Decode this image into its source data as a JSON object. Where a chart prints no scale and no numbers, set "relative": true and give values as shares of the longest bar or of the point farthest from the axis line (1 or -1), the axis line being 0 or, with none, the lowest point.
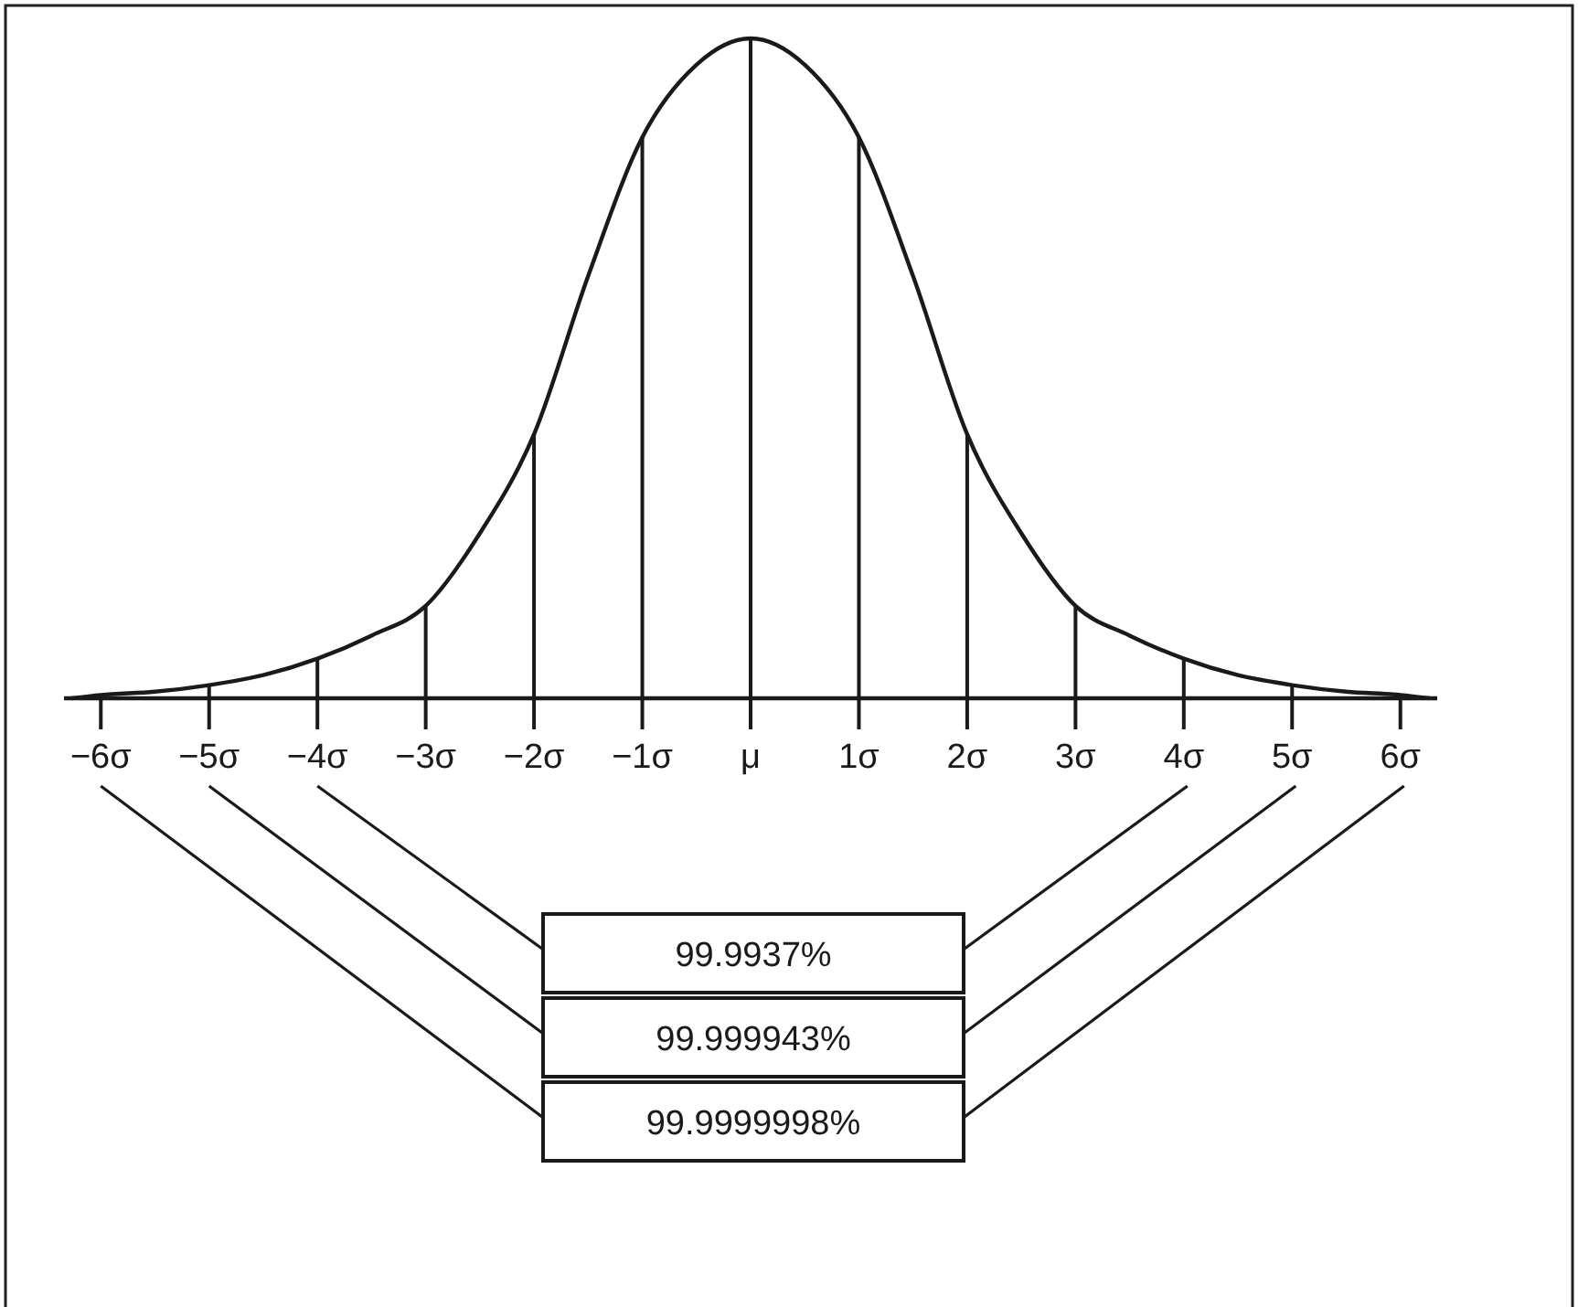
{
  "chart_data": {
    "type": "line",
    "relative": true,
    "xlim": [
      -6.34,
      6.34
    ],
    "xticks": [
      {
        "value": -6,
        "label": "−6σ"
      },
      {
        "value": -5,
        "label": "−5σ"
      },
      {
        "value": -4,
        "label": "−4σ"
      },
      {
        "value": -3,
        "label": "−3σ"
      },
      {
        "value": -2,
        "label": "−2σ"
      },
      {
        "value": -1,
        "label": "−1σ"
      },
      {
        "value": 0,
        "label": "μ"
      },
      {
        "value": 1,
        "label": "1σ"
      },
      {
        "value": 2,
        "label": "2σ"
      },
      {
        "value": 3,
        "label": "3σ"
      },
      {
        "value": 4,
        "label": "4σ"
      },
      {
        "value": 5,
        "label": "5σ"
      },
      {
        "value": 6,
        "label": "6σ"
      }
    ],
    "series": [
      {
        "color": "#1a1a1a",
        "x": [
          -6.27,
          -6,
          -5.5,
          -5,
          -4.5,
          -4,
          -3.5,
          -3,
          -2.5,
          -2,
          -1.5,
          -1,
          -0.5,
          0,
          0.5,
          1,
          1.5,
          2,
          2.5,
          3,
          3.5,
          4,
          4.5,
          5,
          5.5,
          6,
          6.27
        ],
        "values": [
          0,
          0.005,
          0.01,
          0.02,
          0.035,
          0.06,
          0.095,
          0.14,
          0.25,
          0.4,
          0.64,
          0.85,
          0.96,
          1,
          0.96,
          0.85,
          0.64,
          0.4,
          0.25,
          0.14,
          0.095,
          0.06,
          0.035,
          0.02,
          0.01,
          0.005,
          0
        ]
      },
      {
        "type": "bar",
        "color": "#1a1a1a",
        "x": [
          -5,
          -4,
          -3,
          -2,
          -1,
          0,
          1,
          2,
          3,
          4,
          5
        ],
        "values": [
          0.02,
          0.06,
          0.14,
          0.4,
          0.85,
          1,
          0.85,
          0.4,
          0.14,
          0.06,
          0.02
        ]
      }
    ],
    "annotations": [
      "99.9937%",
      "99.999943%",
      "99.9999998%"
    ]
  }
}
